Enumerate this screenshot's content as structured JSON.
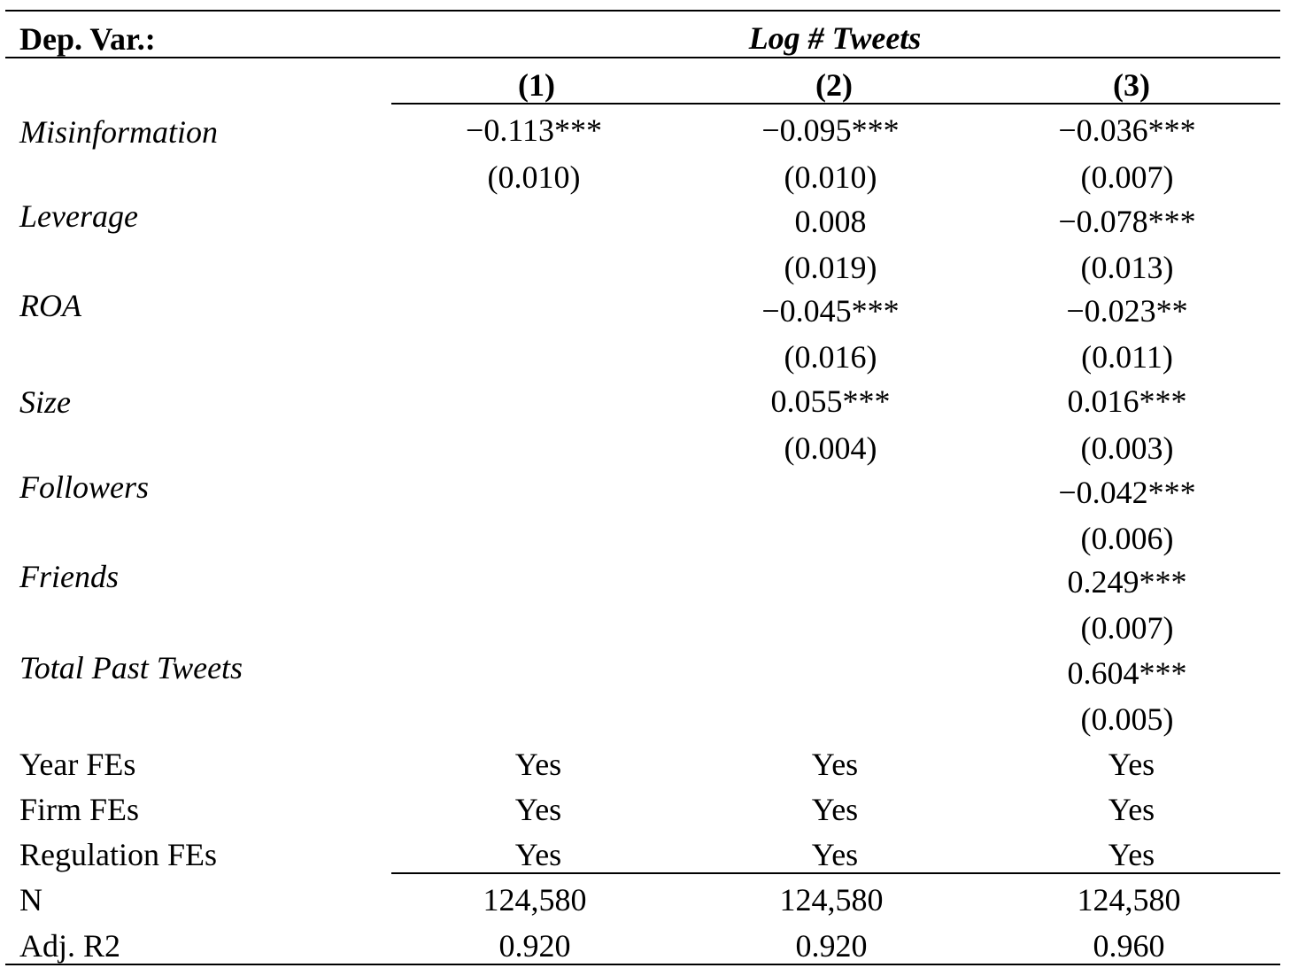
{
  "header": {
    "dep_var_label": "Dep. Var.:",
    "dep_var_name": "Log # Tweets",
    "columns": [
      "(1)",
      "(2)",
      "(3)"
    ]
  },
  "variables": [
    {
      "name": "Misinformation",
      "coef": [
        "−0.113***",
        "−0.095***",
        "−0.036***"
      ],
      "se": [
        "(0.010)",
        "(0.010)",
        "(0.007)"
      ]
    },
    {
      "name": "Leverage",
      "coef": [
        "",
        "0.008",
        "−0.078***"
      ],
      "se": [
        "",
        "(0.019)",
        "(0.013)"
      ]
    },
    {
      "name": "ROA",
      "coef": [
        "",
        "−0.045***",
        "−0.023**"
      ],
      "se": [
        "",
        "(0.016)",
        "(0.011)"
      ]
    },
    {
      "name": "Size",
      "coef": [
        "",
        "0.055***",
        "0.016***"
      ],
      "se": [
        "",
        "(0.004)",
        "(0.003)"
      ]
    },
    {
      "name": "Followers",
      "coef": [
        "",
        "",
        "−0.042***"
      ],
      "se": [
        "",
        "",
        "(0.006)"
      ]
    },
    {
      "name": "Friends",
      "coef": [
        "",
        "",
        "0.249***"
      ],
      "se": [
        "",
        "",
        "(0.007)"
      ]
    },
    {
      "name": "Total Past Tweets",
      "coef": [
        "",
        "",
        "0.604***"
      ],
      "se": [
        "",
        "",
        "(0.005)"
      ]
    }
  ],
  "fixed_effects": [
    {
      "name": "Year FEs",
      "values": [
        "Yes",
        "Yes",
        "Yes"
      ]
    },
    {
      "name": "Firm FEs",
      "values": [
        "Yes",
        "Yes",
        "Yes"
      ]
    },
    {
      "name": "Regulation FEs",
      "values": [
        "Yes",
        "Yes",
        "Yes"
      ]
    }
  ],
  "stats": [
    {
      "name": "N",
      "values": [
        "124,580",
        "124,580",
        "124,580"
      ]
    },
    {
      "name": "Adj. R2",
      "values": [
        "0.920",
        "0.920",
        "0.960"
      ]
    }
  ]
}
